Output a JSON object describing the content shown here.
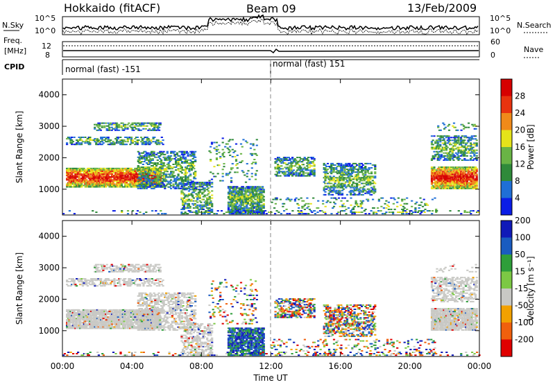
{
  "header": {
    "title": "Hokkaido (fitACF)",
    "beam": "Beam 09",
    "date": "13/Feb/2009"
  },
  "aux": {
    "nsky_label": "N.Sky",
    "nsky_ticks": [
      "10^5",
      "10^0"
    ],
    "nsearch_label": "N.Search",
    "freq_label_1": "Freq.",
    "freq_label_2": "[MHz]",
    "freq_ticks": [
      "12",
      "8"
    ],
    "nave_label": "Nave",
    "nave_ticks": [
      "60",
      "0"
    ],
    "cpid_label": "CPID",
    "cpid_left": "normal (fast) -151",
    "cpid_right": "normal (fast) 151"
  },
  "colors": {
    "power": [
      "#0b1de6",
      "#1f6fd6",
      "#2f8a3a",
      "#69b445",
      "#e5e31a",
      "#f08a1a",
      "#e8330f",
      "#d60000"
    ],
    "velocity": [
      "#e00000",
      "#f0600d",
      "#f2a100",
      "#c8c8c4",
      "#7cc844",
      "#2e9e3a",
      "#1a5cc0",
      "#101ab8"
    ],
    "ground_scatter": "#c0c0bc"
  },
  "chart_data": [
    {
      "type": "heatmap",
      "name": "power",
      "ylabel": "Slant Range [km]",
      "yticks": [
        1000,
        2000,
        3000,
        4000
      ],
      "ylim": [
        180,
        4500
      ],
      "colorbar_label": "Power [dB]",
      "colorbar_ticks": [
        4,
        8,
        12,
        16,
        20,
        24,
        28
      ],
      "colorbar_range": [
        0,
        32
      ]
    },
    {
      "type": "heatmap",
      "name": "velocity",
      "ylabel": "Slant Range [km]",
      "yticks": [
        1000,
        2000,
        3000,
        4000
      ],
      "ylim": [
        180,
        4500
      ],
      "colorbar_label": "Velocity [m s⁻¹]",
      "colorbar_ticks": [
        -200,
        -100,
        -50,
        -15,
        15,
        50,
        100,
        200
      ],
      "xlabel": "Time UT",
      "xticks": [
        "00:00",
        "04:00",
        "08:00",
        "12:00",
        "16:00",
        "20:00",
        "00:00"
      ],
      "xlim_hours": [
        0,
        24
      ]
    }
  ]
}
